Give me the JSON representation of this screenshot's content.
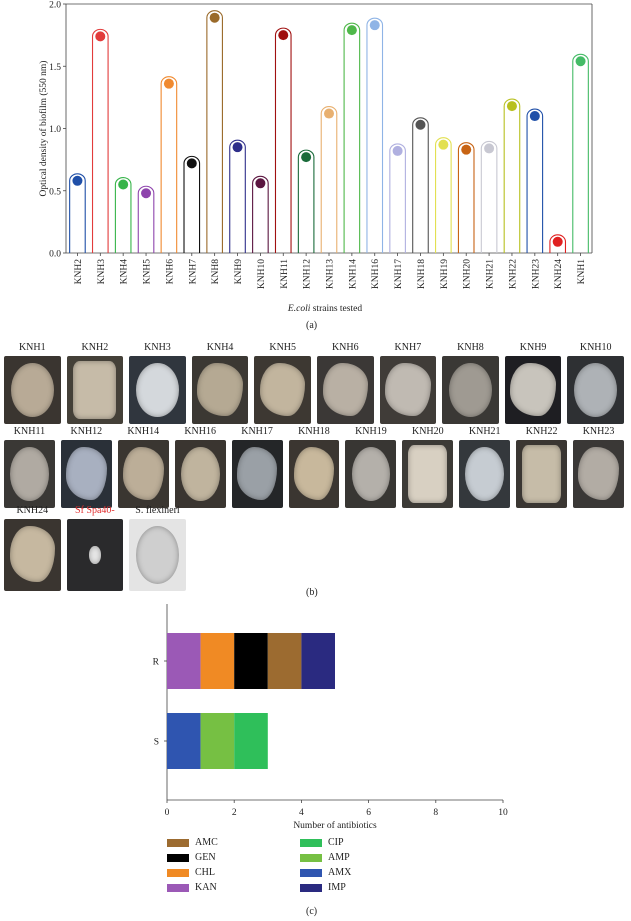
{
  "panel_labels": {
    "a": "(a)",
    "b": "(b)",
    "c": "(c)"
  },
  "chart_data": [
    {
      "type": "scatter",
      "style": "lollipop",
      "title": "",
      "xlabel_italic": "E.coli",
      "xlabel_rest": " strains tested",
      "ylabel": "Optical density of biofilm (550 nm)",
      "ylim": [
        0,
        2.0
      ],
      "yticks": [
        "0.0",
        "0.5",
        "1.0",
        "1.5",
        "2.0"
      ],
      "grid": false,
      "categories": [
        "KNH2",
        "KNH3",
        "KNH4",
        "KNH5",
        "KNH6",
        "KNH7",
        "KNH8",
        "KNH9",
        "KNH10",
        "KNH11",
        "KNH12",
        "KNH13",
        "KNH14",
        "KNH16",
        "KNH17",
        "KNH18",
        "KNH19",
        "KNH20",
        "KNH21",
        "KNH22",
        "KNH23",
        "KNH24",
        "KNH1"
      ],
      "values": [
        0.58,
        1.74,
        0.55,
        0.48,
        1.36,
        0.72,
        1.89,
        0.85,
        0.56,
        1.75,
        0.77,
        1.12,
        1.79,
        1.83,
        0.82,
        1.03,
        0.87,
        0.83,
        0.84,
        1.18,
        1.1,
        0.09,
        1.54
      ],
      "colors": [
        "#1f4fa8",
        "#e23b3b",
        "#37b44a",
        "#8e44ad",
        "#f08a30",
        "#111111",
        "#9a6a2a",
        "#2e2e8a",
        "#5b1640",
        "#a01010",
        "#1a6b3a",
        "#e8b070",
        "#4fb84a",
        "#8fb4e6",
        "#b0b0e0",
        "#555555",
        "#e2e050",
        "#c86414",
        "#c8c8d2",
        "#b8c020",
        "#1f4fa8",
        "#e02020",
        "#44bb66"
      ]
    },
    {
      "type": "bar",
      "orientation": "horizontal",
      "stacked": true,
      "title": "",
      "xlabel": "Number of antibiotics",
      "ylabel": "",
      "xlim": [
        0,
        10
      ],
      "xticks": [
        "0",
        "2",
        "4",
        "6",
        "8",
        "10"
      ],
      "categories": [
        "R",
        "S"
      ],
      "series": [
        {
          "name": "KAN",
          "color": "#9b59b6",
          "values": [
            1,
            0
          ]
        },
        {
          "name": "CHL",
          "color": "#f08a24",
          "values": [
            1,
            0
          ]
        },
        {
          "name": "GEN",
          "color": "#000000",
          "values": [
            1,
            0
          ]
        },
        {
          "name": "AMC",
          "color": "#9c6b30",
          "values": [
            1,
            0
          ]
        },
        {
          "name": "IMP",
          "color": "#2a2a80",
          "values": [
            1,
            0
          ]
        },
        {
          "name": "AMX",
          "color": "#2f55b0",
          "values": [
            0,
            1
          ]
        },
        {
          "name": "AMP",
          "color": "#76c043",
          "values": [
            0,
            1
          ]
        },
        {
          "name": "CIP",
          "color": "#2fbf5a",
          "values": [
            0,
            1
          ]
        }
      ],
      "legend_left": [
        "AMC",
        "GEN",
        "CHL",
        "KAN"
      ],
      "legend_right": [
        "CIP",
        "AMP",
        "AMX",
        "IMP"
      ],
      "legend_placement": "bottom"
    }
  ],
  "colony_panel": {
    "rows": [
      [
        {
          "label": "KNH1",
          "bg": "#3a3530",
          "blob": "#b8aa96",
          "shape": "round"
        },
        {
          "label": "KNH2",
          "bg": "#444038",
          "blob": "#c6bba8",
          "shape": "square"
        },
        {
          "label": "KNH3",
          "bg": "#30363e",
          "blob": "#d4d8dc",
          "shape": "round"
        },
        {
          "label": "KNH4",
          "bg": "#3b3833",
          "blob": "#b5a993",
          "shape": "irregular"
        },
        {
          "label": "KNH5",
          "bg": "#3d3832",
          "blob": "#c2b59e",
          "shape": "irregular"
        },
        {
          "label": "KNH6",
          "bg": "#3b3836",
          "blob": "#b9b0a4",
          "shape": "irregular"
        },
        {
          "label": "KNH7",
          "bg": "#403c38",
          "blob": "#c0bab2",
          "shape": "irregular"
        },
        {
          "label": "KNH8",
          "bg": "#3a3835",
          "blob": "#9f9a92",
          "shape": "round"
        },
        {
          "label": "KNH9",
          "bg": "#1e1e22",
          "blob": "#c8c4bc",
          "shape": "irregular"
        },
        {
          "label": "KNH10",
          "bg": "#2e3033",
          "blob": "#aeb2b6",
          "shape": "round"
        }
      ],
      [
        {
          "label": "KNH11",
          "bg": "#3a3835",
          "blob": "#b0aaa2",
          "shape": "round"
        },
        {
          "label": "KNH12",
          "bg": "#2a3038",
          "blob": "#a8b0c0",
          "shape": "irregular"
        },
        {
          "label": "KNH14",
          "bg": "#3a3631",
          "blob": "#bcae98",
          "shape": "irregular"
        },
        {
          "label": "KNH16",
          "bg": "#3a3530",
          "blob": "#c0b49e",
          "shape": "round"
        },
        {
          "label": "KNH17",
          "bg": "#242628",
          "blob": "#9aa0a6",
          "shape": "irregular"
        },
        {
          "label": "KNH18",
          "bg": "#3b3631",
          "blob": "#c8b89c",
          "shape": "irregular"
        },
        {
          "label": "KNH19",
          "bg": "#383633",
          "blob": "#b4b0aa",
          "shape": "round"
        },
        {
          "label": "KNH20",
          "bg": "#3c3a36",
          "blob": "#d8d0c2",
          "shape": "square"
        },
        {
          "label": "KNH21",
          "bg": "#34383c",
          "blob": "#c6ccd2",
          "shape": "round"
        },
        {
          "label": "KNH22",
          "bg": "#3a3632",
          "blob": "#c6bca8",
          "shape": "square"
        },
        {
          "label": "KNH23",
          "bg": "#3a3836",
          "blob": "#b2aca4",
          "shape": "irregular"
        }
      ],
      [
        {
          "label": "KNH24",
          "bg": "#3a3530",
          "blob": "#c6b8a0",
          "shape": "irregular"
        },
        {
          "label": "Sf Spa40-",
          "bg": "#2a2a2c",
          "blob": "#e8e8e8",
          "shape": "small",
          "label_color": "#e03030"
        },
        {
          "label": "S. flexineri",
          "bg": "#e4e4e4",
          "blob": "#cfcfcf",
          "shape": "round"
        }
      ]
    ]
  }
}
